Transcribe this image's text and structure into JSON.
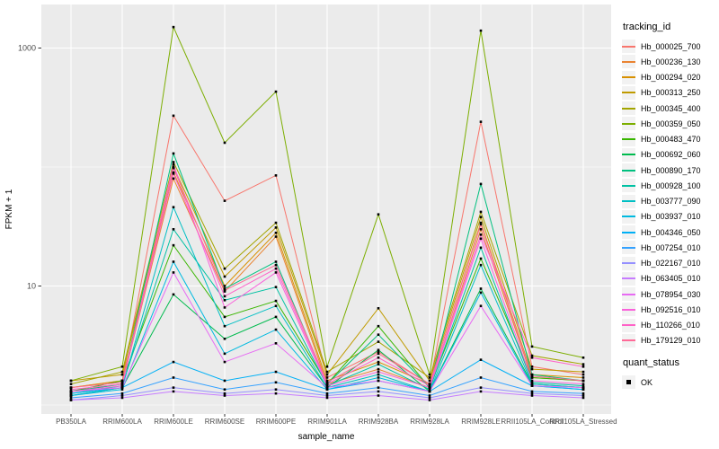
{
  "figure": {
    "panel_background": "#EBEBEB",
    "grid_color": "#FFFFFF",
    "point_color": "#000000",
    "tick_color": "#333333",
    "tick_label_color": "#4D4D4D",
    "legend_key_background": "#F2F2F2"
  },
  "chart_data": {
    "type": "line",
    "title": "",
    "xlabel": "sample_name",
    "ylabel": "FPKM + 1",
    "y_scale": "log10",
    "ylim": [
      1,
      2300
    ],
    "y_ticks": [
      {
        "label": "10",
        "value": 10
      },
      {
        "label": "1000",
        "value": 1000
      }
    ],
    "y_gridlines_major": [
      10,
      1000
    ],
    "y_gridlines_minor": [
      1,
      100
    ],
    "grid": true,
    "legend_position": "right",
    "categories": [
      "PB350LA",
      "RRIM600LA",
      "RRIM600LE",
      "RRIM600SE",
      "RRIM600PE",
      "RRIM901LA",
      "RRIM928BA",
      "RRIM928LA",
      "RRIM928LE",
      "RRII105LA_Control",
      "RRII105LA_Stressed"
    ],
    "series": [
      {
        "name": "Hb_000025_700",
        "color": "#F8766D",
        "values": [
          1.4,
          1.6,
          270,
          52,
          85,
          1.7,
          2.8,
          1.5,
          240,
          2.1,
          1.8
        ]
      },
      {
        "name": "Hb_000236_130",
        "color": "#EA8331",
        "values": [
          1.3,
          1.5,
          80,
          9,
          26,
          1.5,
          2.0,
          1.4,
          30,
          1.7,
          1.6
        ]
      },
      {
        "name": "Hb_000294_020",
        "color": "#D89000",
        "values": [
          1.4,
          1.6,
          90,
          10,
          28,
          1.6,
          2.3,
          1.5,
          34,
          1.8,
          1.7
        ]
      },
      {
        "name": "Hb_000313_250",
        "color": "#C09B00",
        "values": [
          1.6,
          1.8,
          100,
          12,
          31,
          1.8,
          6.5,
          1.6,
          38,
          2.0,
          1.9
        ]
      },
      {
        "name": "Hb_000345_400",
        "color": "#A3A500",
        "values": [
          1.5,
          1.9,
          110,
          14,
          34,
          1.9,
          3.4,
          1.7,
          42,
          2.6,
          2.2
        ]
      },
      {
        "name": "Hb_000359_050",
        "color": "#7CAE00",
        "values": [
          1.6,
          2.1,
          1500,
          160,
          430,
          2.1,
          40,
          1.8,
          1400,
          3.1,
          2.5
        ]
      },
      {
        "name": "Hb_000483_470",
        "color": "#39B600",
        "values": [
          1.3,
          1.6,
          22,
          5.5,
          7.5,
          1.5,
          4.6,
          1.4,
          17,
          1.7,
          1.6
        ]
      },
      {
        "name": "Hb_000692_060",
        "color": "#00BB4E",
        "values": [
          1.2,
          1.4,
          8.5,
          3.6,
          5.5,
          1.4,
          2.9,
          1.3,
          9.5,
          1.5,
          1.4
        ]
      },
      {
        "name": "Hb_000890_170",
        "color": "#00C07F",
        "values": [
          1.3,
          1.5,
          130,
          9.5,
          16,
          1.5,
          3.9,
          1.4,
          72,
          1.8,
          1.6
        ]
      },
      {
        "name": "Hb_000928_100",
        "color": "#00C1A3",
        "values": [
          1.25,
          1.45,
          30,
          7.6,
          9.8,
          1.45,
          2.2,
          1.35,
          21,
          1.55,
          1.45
        ]
      },
      {
        "name": "Hb_003777_090",
        "color": "#00BFC4",
        "values": [
          1.2,
          1.4,
          46,
          4.6,
          6.8,
          1.4,
          1.8,
          1.3,
          15,
          1.5,
          1.4
        ]
      },
      {
        "name": "Hb_003937_010",
        "color": "#00BAE0",
        "values": [
          1.2,
          1.35,
          16,
          2.7,
          4.3,
          1.35,
          1.7,
          1.3,
          8.8,
          1.45,
          1.35
        ]
      },
      {
        "name": "Hb_004346_050",
        "color": "#00B0F6",
        "values": [
          1.25,
          1.4,
          2.3,
          1.6,
          1.9,
          1.35,
          1.6,
          1.3,
          2.4,
          1.45,
          1.35
        ]
      },
      {
        "name": "Hb_007254_010",
        "color": "#35A2FF",
        "values": [
          1.15,
          1.25,
          1.7,
          1.35,
          1.55,
          1.25,
          1.4,
          1.2,
          1.7,
          1.3,
          1.25
        ]
      },
      {
        "name": "Hb_022167_010",
        "color": "#9590FF",
        "values": [
          1.1,
          1.2,
          1.4,
          1.25,
          1.35,
          1.2,
          1.3,
          1.15,
          1.4,
          1.25,
          1.2
        ]
      },
      {
        "name": "Hb_063405_010",
        "color": "#C77CFF",
        "values": [
          1.1,
          1.15,
          1.3,
          1.2,
          1.25,
          1.15,
          1.2,
          1.1,
          1.3,
          1.2,
          1.15
        ]
      },
      {
        "name": "Hb_078954_030",
        "color": "#E76BF3",
        "values": [
          1.3,
          1.4,
          13,
          2.3,
          3.3,
          1.4,
          1.6,
          1.3,
          6.8,
          1.45,
          1.4
        ]
      },
      {
        "name": "Hb_092516_010",
        "color": "#FA62DB",
        "values": [
          1.3,
          1.45,
          105,
          6.6,
          13,
          1.45,
          1.9,
          1.4,
          25,
          1.6,
          1.5
        ]
      },
      {
        "name": "Hb_110266_010",
        "color": "#FF61C7",
        "values": [
          1.35,
          1.5,
          88,
          8.2,
          14,
          1.5,
          2.5,
          1.45,
          27,
          2.5,
          2.1
        ]
      },
      {
        "name": "Hb_179129_010",
        "color": "#FF6A98",
        "values": [
          1.4,
          1.55,
          98,
          9.2,
          15,
          1.55,
          2.7,
          1.5,
          33,
          1.75,
          1.6
        ]
      }
    ],
    "legend": {
      "tracking_title": "tracking_id",
      "quant_title": "quant_status",
      "quant_items": [
        {
          "label": "OK"
        }
      ]
    }
  }
}
